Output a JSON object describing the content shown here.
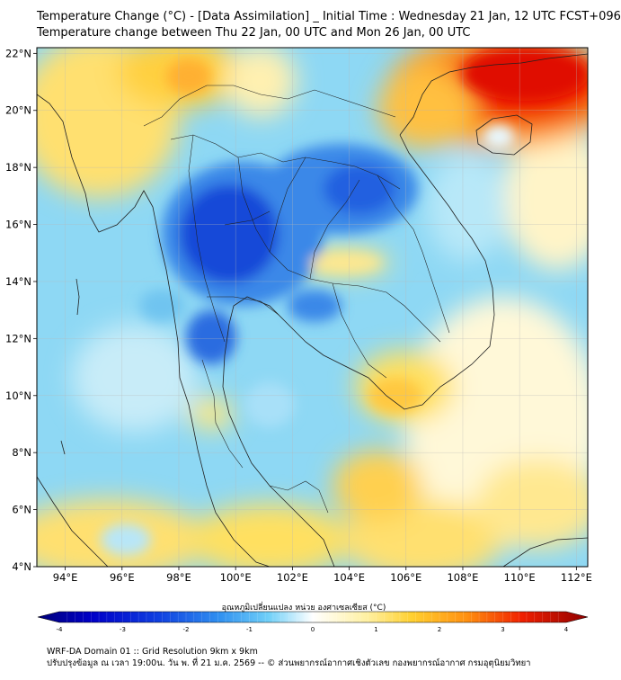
{
  "title": {
    "line1": "Temperature Change (°C) - [Data Assimilation] _ Initial Time : Wednesday 21 Jan, 12 UTC FCST+096",
    "line2": "Temperature change between Thu 22 Jan, 00 UTC and Mon 26 Jan, 00 UTC"
  },
  "map": {
    "lat_labels": [
      "22°N",
      "20°N",
      "18°N",
      "16°N",
      "14°N",
      "12°N",
      "10°N",
      "8°N",
      "6°N",
      "4°N"
    ],
    "lon_labels": [
      "94°E",
      "96°E",
      "98°E",
      "100°E",
      "102°E",
      "104°E",
      "106°E",
      "108°E",
      "110°E",
      "112°E"
    ],
    "lat_values": [
      22,
      20,
      18,
      16,
      14,
      12,
      10,
      8,
      6,
      4
    ],
    "lon_values": [
      94,
      96,
      98,
      100,
      102,
      104,
      106,
      108,
      110,
      112
    ],
    "extent": {
      "lon_min": 93,
      "lon_max": 112.4,
      "lat_min": 4,
      "lat_max": 22.2
    },
    "field_description_palette": {
      "strong_cold": "#0000b4",
      "cold": "#2060e0",
      "cool": "#60c8f0",
      "neutral": "#ffffff",
      "mild_warm": "#ffe060",
      "warm": "#ffa020",
      "hot": "#f00000"
    }
  },
  "colorbar": {
    "label": "อุณหภูมิเปลี่ยนแปลง หน่วย องศาเซลเซียส (°C)",
    "ticks": [
      "-4",
      "-3",
      "-2",
      "-1",
      "0",
      "1",
      "2",
      "3",
      "4"
    ],
    "tick_values": [
      -4,
      -3,
      -2,
      -1,
      0,
      1,
      2,
      3,
      4
    ],
    "range": [
      -4,
      4
    ]
  },
  "footer": {
    "line1": "WRF-DA Domain 01 :: Grid Resolution 9km x 9km",
    "line2": "ปรับปรุงข้อมูล ณ เวลา 19:00น. วัน พ. ที่ 21 ม.ค. 2569 -- © ส่วนพยากรณ์อากาศเชิงตัวเลข กองพยากรณ์อากาศ กรมอุตุนิยมวิทยา"
  }
}
